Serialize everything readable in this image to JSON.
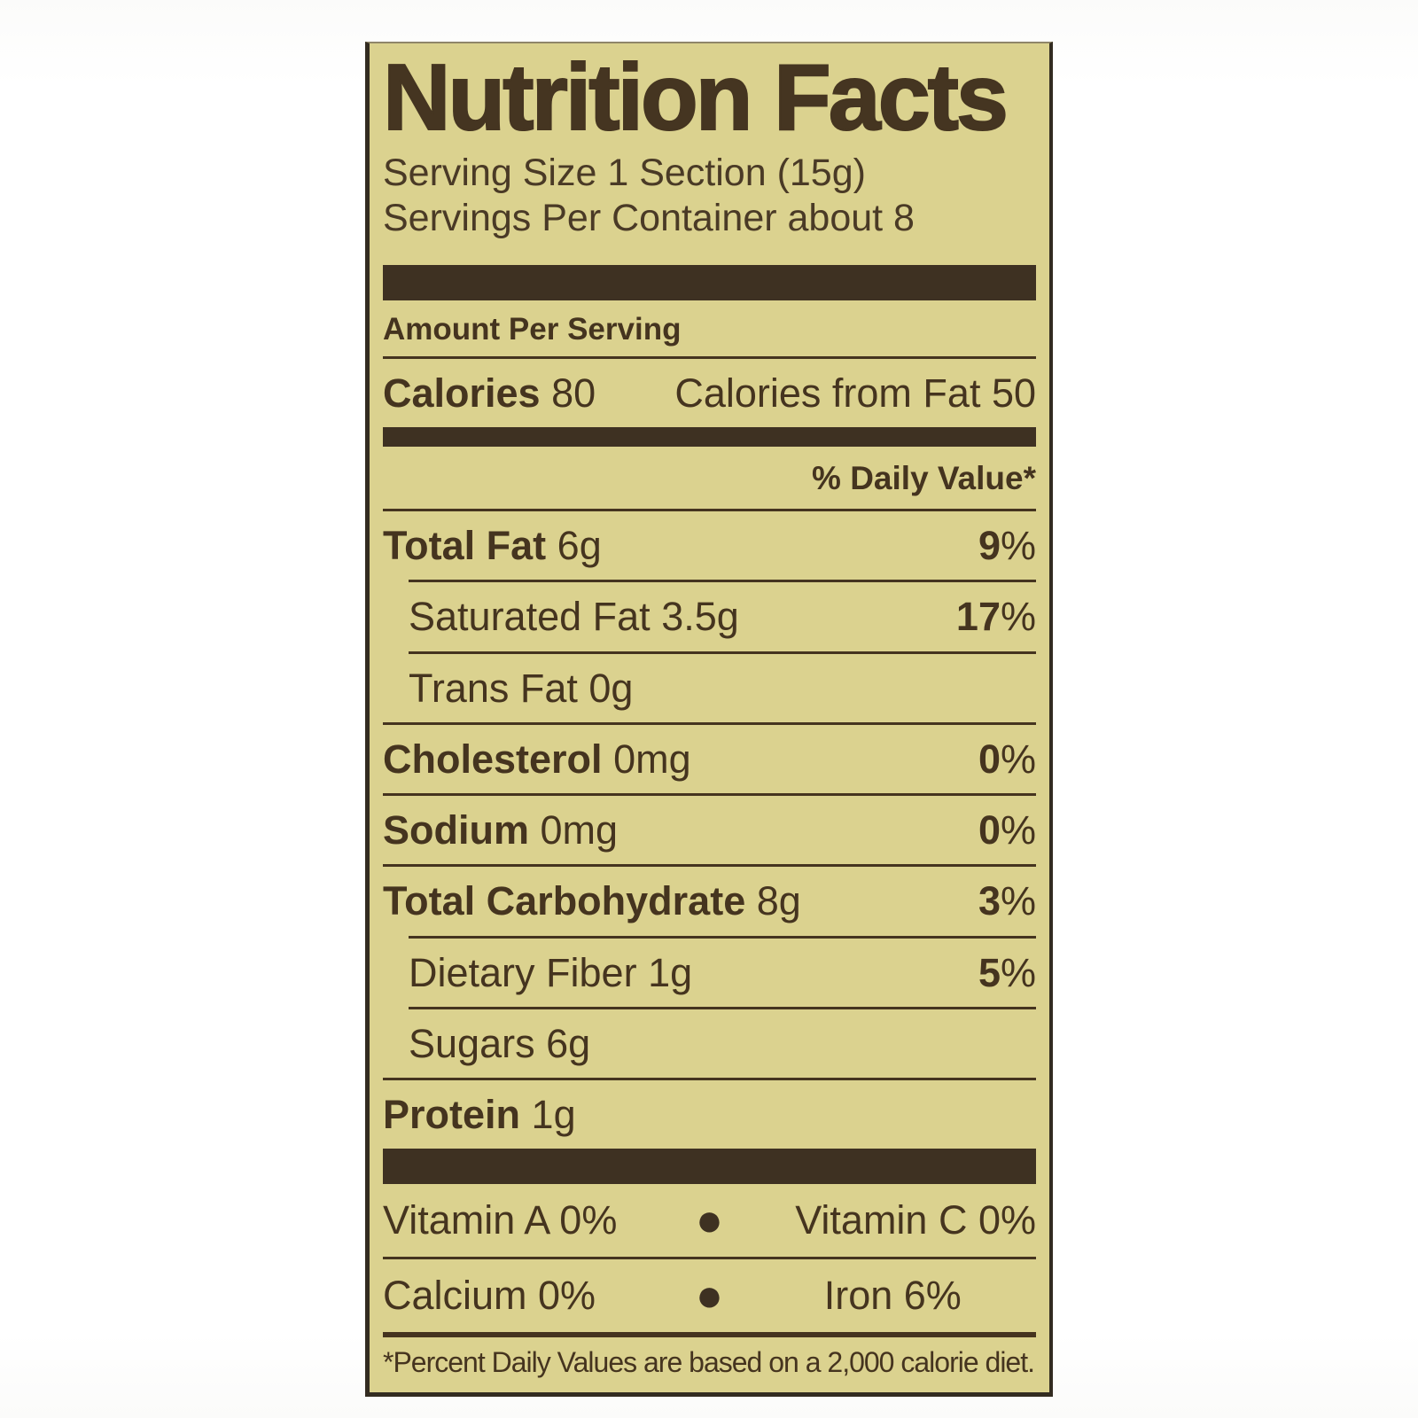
{
  "label": {
    "title": "Nutrition Facts",
    "serving_size": "Serving Size 1 Section (15g)",
    "servings_per_container": "Servings Per Container about 8",
    "amount_per_serving": "Amount Per Serving",
    "calories": {
      "label": "Calories",
      "value": "80",
      "from_fat": "Calories from Fat 50"
    },
    "daily_value_header": "% Daily Value*",
    "percent_sign": "%",
    "rows": [
      {
        "name": "Total Fat",
        "amount": "6g",
        "percent": "9"
      },
      {
        "name": "Saturated Fat",
        "amount": "3.5g",
        "percent": "17"
      },
      {
        "name": "Trans Fat",
        "amount": "0g",
        "percent": ""
      },
      {
        "name": "Cholesterol",
        "amount": "0mg",
        "percent": "0"
      },
      {
        "name": "Sodium",
        "amount": "0mg",
        "percent": "0"
      },
      {
        "name": "Total Carbohydrate",
        "amount": "8g",
        "percent": "3"
      },
      {
        "name": "Dietary Fiber",
        "amount": "1g",
        "percent": "5"
      },
      {
        "name": "Sugars",
        "amount": "6g",
        "percent": ""
      },
      {
        "name": "Protein",
        "amount": "1g",
        "percent": ""
      }
    ],
    "micronutrients": {
      "bullet": "●",
      "row1": {
        "left": "Vitamin A 0%",
        "right": "Vitamin C 0%"
      },
      "row2": {
        "left": "Calcium 0%",
        "right": "Iron 6%"
      }
    },
    "footnote": "*Percent Daily Values are based on a 2,000 calorie diet.",
    "colors": {
      "label_background": "#dbd28f",
      "ink": "#45341f",
      "bar": "#3e3122",
      "page_background": "#ffffff"
    }
  }
}
